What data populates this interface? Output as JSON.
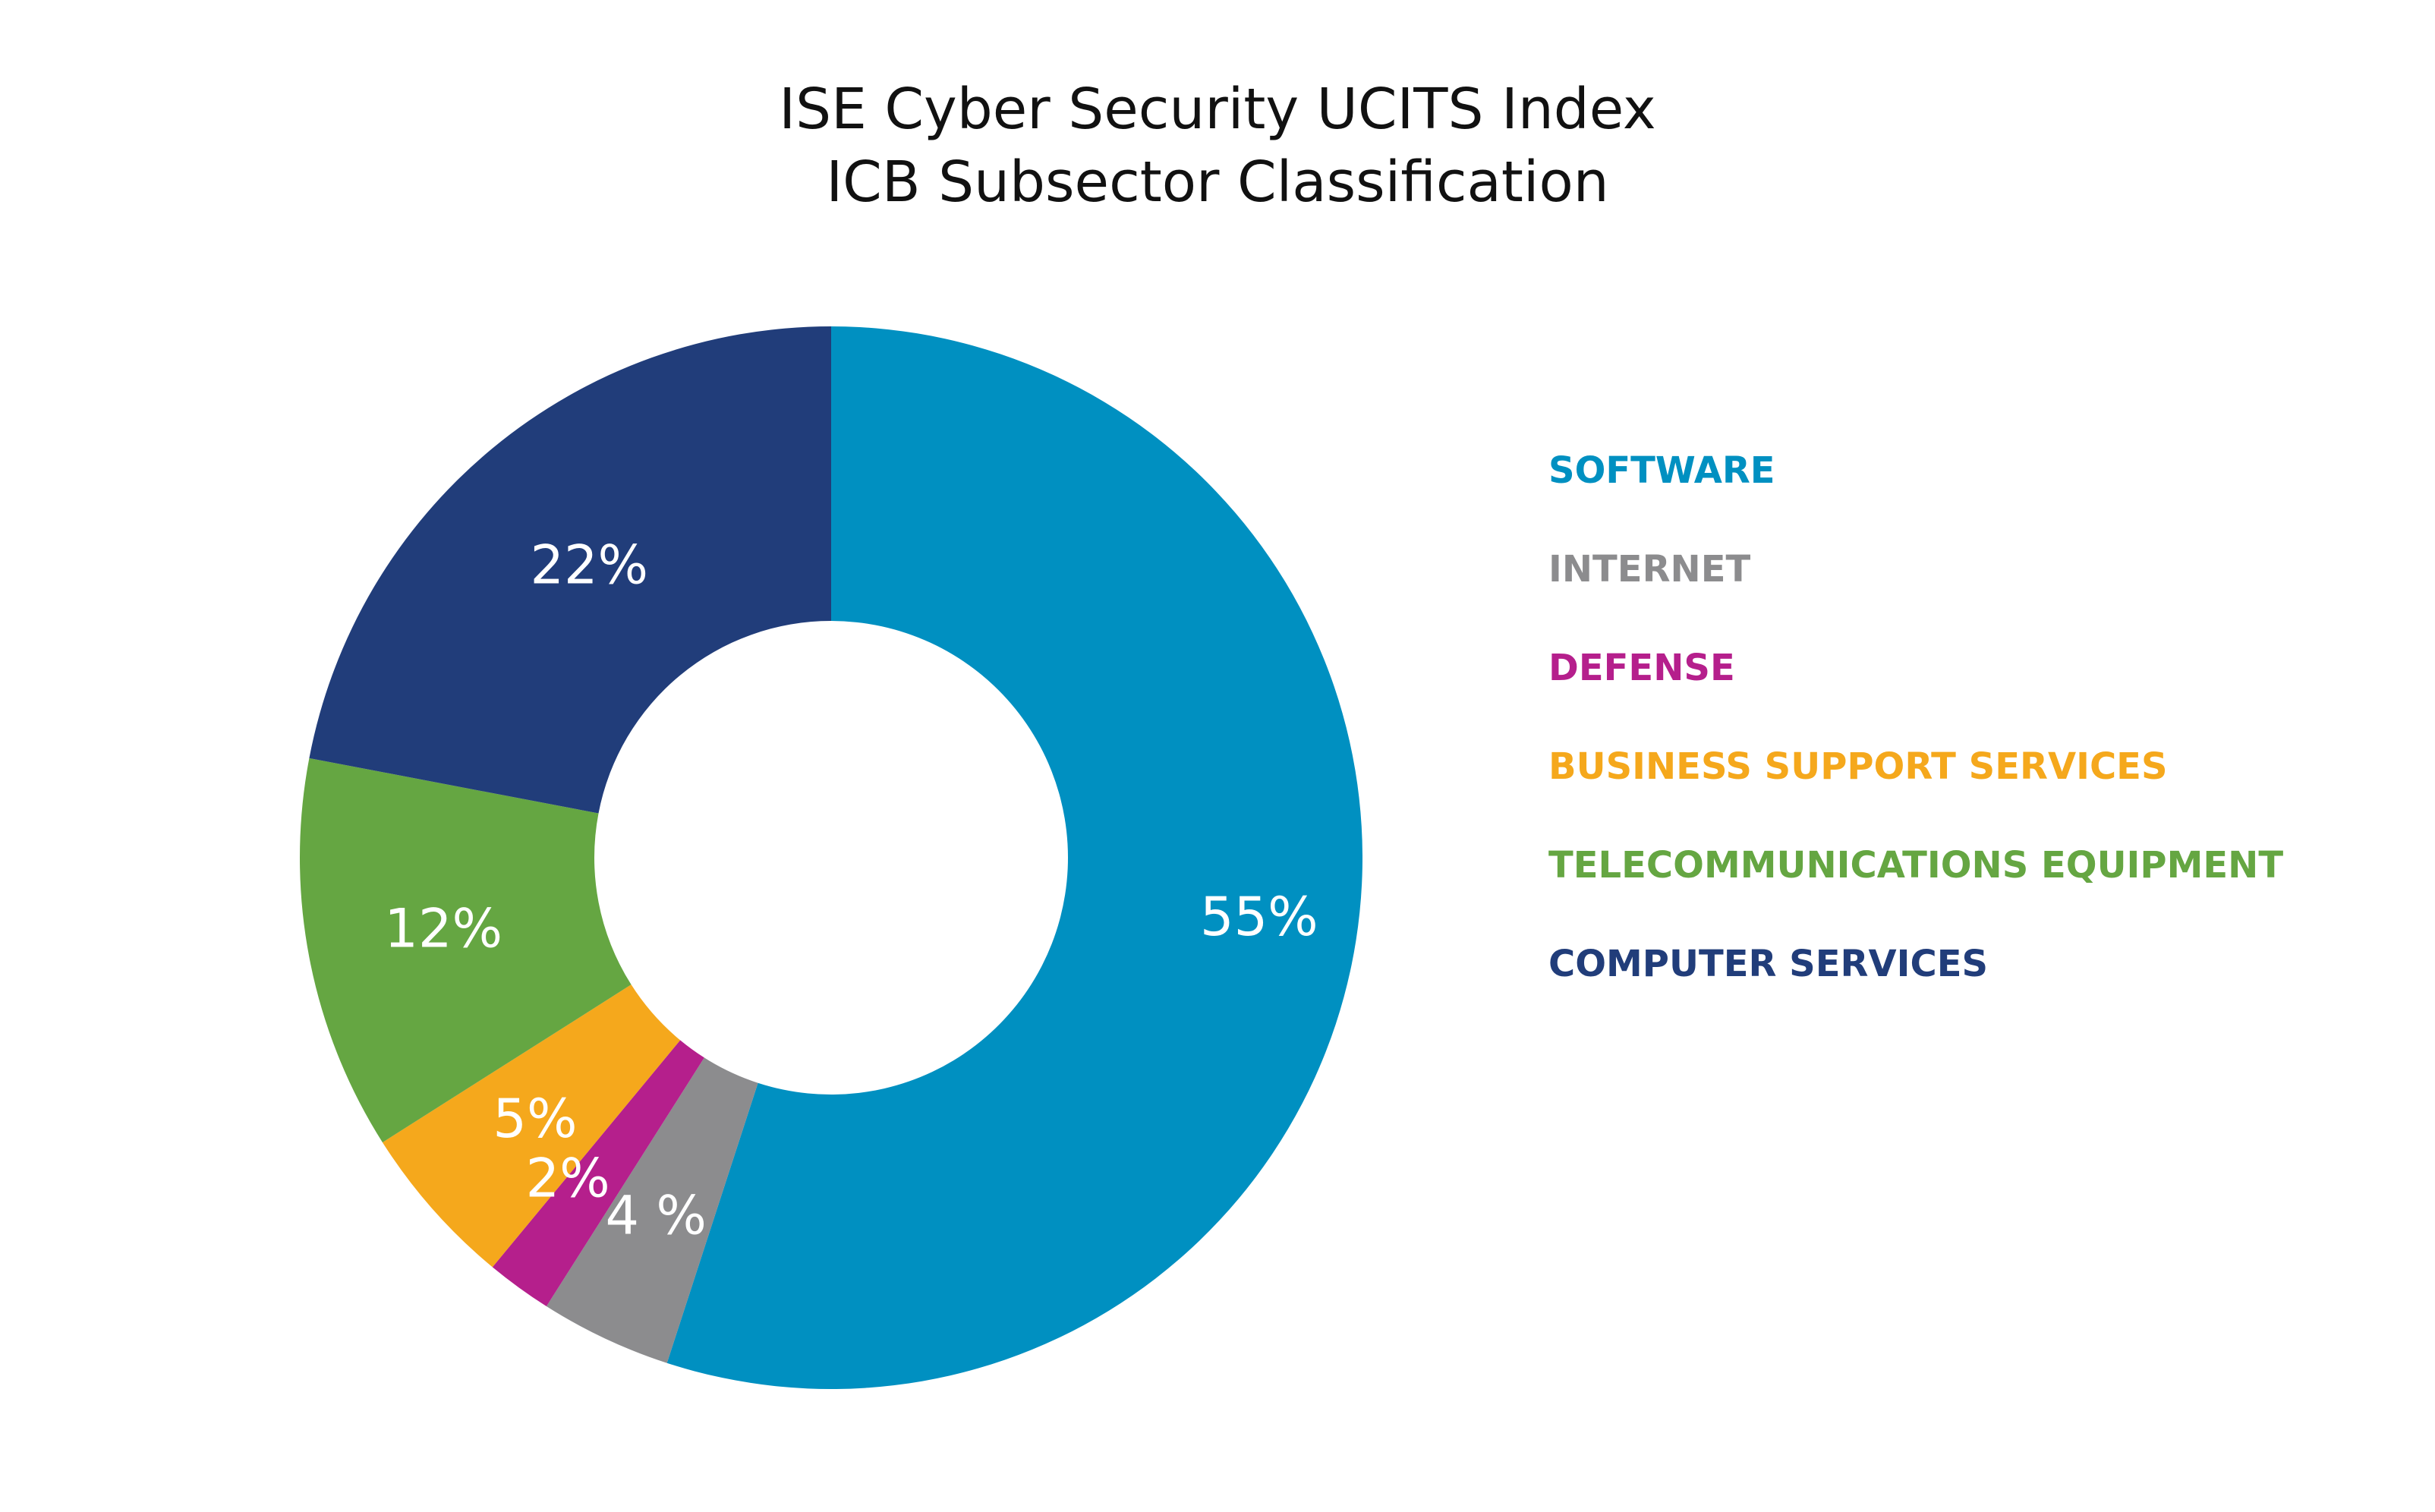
{
  "chart_data": {
    "type": "pie",
    "title": "ISE Cyber Security UCITS Index",
    "subtitle": "ICB Subsector Classification",
    "donut": true,
    "legend_position": "right",
    "slices": [
      {
        "name": "SOFTWARE",
        "value": 55,
        "label": "55%",
        "color": "#0090C1"
      },
      {
        "name": "INTERNET",
        "value": 4,
        "label": "4 %",
        "color": "#8C8C8E"
      },
      {
        "name": "DEFENSE",
        "value": 2,
        "label": "2%",
        "color": "#B51F8C"
      },
      {
        "name": "BUSINESS SUPPORT SERVICES",
        "value": 5,
        "label": "5%",
        "color": "#F5A81C"
      },
      {
        "name": "TELECOMMUNICATIONS EQUIPMENT",
        "value": 12,
        "label": "12%",
        "color": "#65A642"
      },
      {
        "name": "COMPUTER SERVICES",
        "value": 22,
        "label": "22%",
        "color": "#213D7A"
      }
    ]
  }
}
